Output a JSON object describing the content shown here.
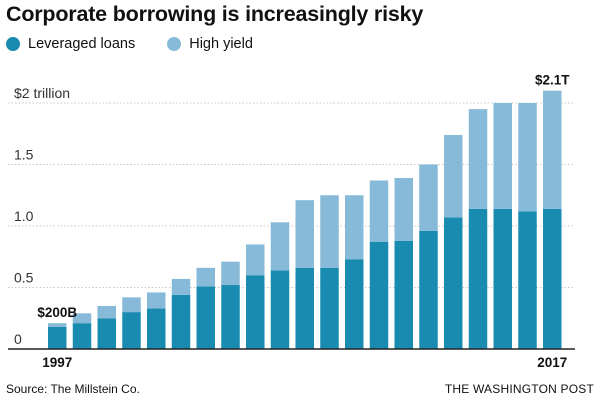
{
  "chart_data": {
    "type": "bar",
    "stacked": true,
    "title": "Corporate borrowing is increasingly risky",
    "x": [
      1997,
      1998,
      1999,
      2000,
      2001,
      2002,
      2003,
      2004,
      2005,
      2006,
      2007,
      2008,
      2009,
      2010,
      2011,
      2012,
      2013,
      2014,
      2015,
      2016,
      2017
    ],
    "x_labels": {
      "first": "1997",
      "last": "2017"
    },
    "series": [
      {
        "name": "Leveraged loans",
        "color": "#1a8bb0",
        "values": [
          0.18,
          0.21,
          0.25,
          0.3,
          0.33,
          0.44,
          0.51,
          0.52,
          0.6,
          0.64,
          0.66,
          0.66,
          0.73,
          0.87,
          0.88,
          0.96,
          1.07,
          1.14,
          1.14,
          1.12,
          1.14
        ]
      },
      {
        "name": "High yield",
        "color": "#86bad8",
        "values": [
          0.03,
          0.08,
          0.1,
          0.12,
          0.13,
          0.13,
          0.15,
          0.19,
          0.25,
          0.39,
          0.55,
          0.59,
          0.52,
          0.5,
          0.51,
          0.54,
          0.67,
          0.81,
          0.86,
          0.88,
          0.96
        ]
      }
    ],
    "yticks": [
      {
        "value": 0,
        "label": "0"
      },
      {
        "value": 0.5,
        "label": "0.5"
      },
      {
        "value": 1.0,
        "label": "1.0"
      },
      {
        "value": 1.5,
        "label": "1.5"
      },
      {
        "value": 2.0,
        "label": "$2 trillion"
      }
    ],
    "ylim": [
      0,
      2.1
    ],
    "grid": true,
    "annotations": [
      {
        "text": "$200B",
        "index": 0
      },
      {
        "text": "$2.1T",
        "index": 20
      }
    ],
    "legend_position": "top-left"
  },
  "footer": {
    "source": "Source: The Millstein Co.",
    "credit": "THE WASHINGTON POST"
  }
}
